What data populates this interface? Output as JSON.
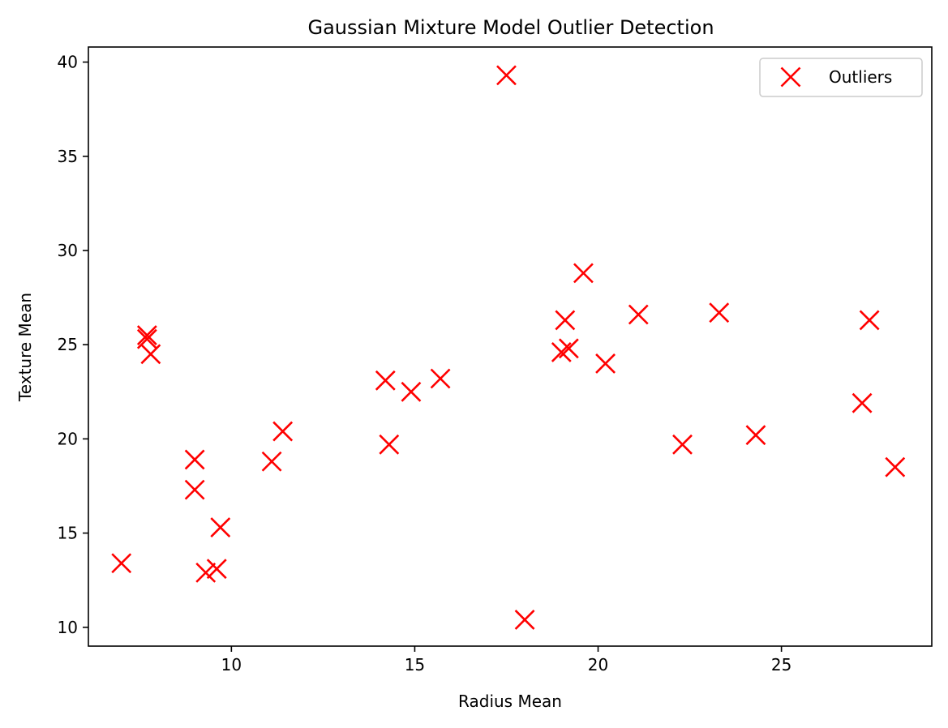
{
  "chart_data": {
    "type": "scatter",
    "title": "Gaussian Mixture Model Outlier Detection",
    "xlabel": "Radius Mean",
    "ylabel": "Texture Mean",
    "xlim": [
      6.1,
      29.1
    ],
    "ylim": [
      9.0,
      40.8
    ],
    "xticks": [
      10,
      15,
      20,
      25
    ],
    "yticks": [
      10,
      15,
      20,
      25,
      30,
      35,
      40
    ],
    "grid": false,
    "legend": {
      "location": "top-right"
    },
    "series": [
      {
        "name": "Outliers",
        "marker": "x",
        "color": "#ff0000",
        "points": [
          [
            17.5,
            39.3
          ],
          [
            18.0,
            10.4
          ],
          [
            19.6,
            28.8
          ],
          [
            19.1,
            26.3
          ],
          [
            19.0,
            24.6
          ],
          [
            19.2,
            24.8
          ],
          [
            20.2,
            24.0
          ],
          [
            21.1,
            26.6
          ],
          [
            23.3,
            26.7
          ],
          [
            27.4,
            26.3
          ],
          [
            27.2,
            21.9
          ],
          [
            28.1,
            18.5
          ],
          [
            22.3,
            19.7
          ],
          [
            24.3,
            20.2
          ],
          [
            14.9,
            22.5
          ],
          [
            15.7,
            23.2
          ],
          [
            14.2,
            23.1
          ],
          [
            14.3,
            19.7
          ],
          [
            11.4,
            20.4
          ],
          [
            11.1,
            18.8
          ],
          [
            9.0,
            18.9
          ],
          [
            9.0,
            17.3
          ],
          [
            9.7,
            15.3
          ],
          [
            9.6,
            13.1
          ],
          [
            9.3,
            12.9
          ],
          [
            7.0,
            13.4
          ],
          [
            7.7,
            25.5
          ],
          [
            7.7,
            25.3
          ],
          [
            7.8,
            24.5
          ]
        ]
      }
    ]
  }
}
